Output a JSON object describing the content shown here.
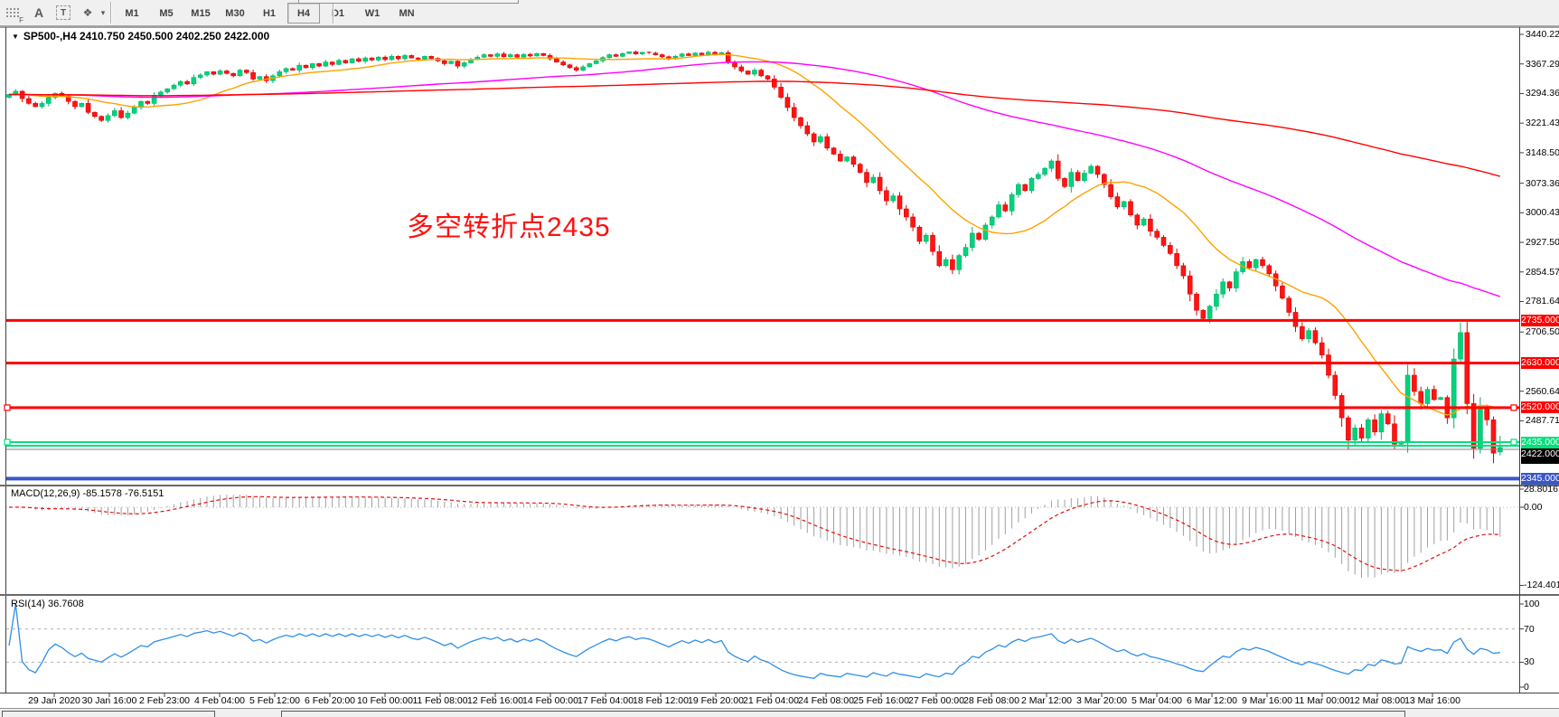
{
  "window": {
    "toolbar": {
      "icons": [
        {
          "name": "template-grid-icon",
          "glyph": "F"
        },
        {
          "name": "text-a-icon",
          "glyph": "A"
        },
        {
          "name": "text-box-icon",
          "glyph": "T"
        },
        {
          "name": "objects-icon",
          "glyph": "❖"
        },
        {
          "name": "dropdown-caret-icon",
          "glyph": "▾"
        }
      ],
      "timeframes": [
        {
          "label": "M1",
          "active": false
        },
        {
          "label": "M5",
          "active": false
        },
        {
          "label": "M15",
          "active": false
        },
        {
          "label": "M30",
          "active": false
        },
        {
          "label": "H1",
          "active": false
        },
        {
          "label": "H4",
          "active": true
        },
        {
          "label": "D1",
          "active": false
        },
        {
          "label": "W1",
          "active": false
        },
        {
          "label": "MN",
          "active": false
        }
      ]
    },
    "chart_title": {
      "triangle": "▼",
      "text": "SP500-,H4  2410.750 2450.500 2402.250 2422.000"
    }
  },
  "chart_data": {
    "type": "candlestick",
    "symbol": "SP500-",
    "timeframe": "H4",
    "current_ohlc": {
      "open": 2410.75,
      "high": 2450.5,
      "low": 2402.25,
      "close": 2422.0
    },
    "first_open": 3285,
    "closes": [
      3292,
      3300,
      3282,
      3270,
      3262,
      3270,
      3285,
      3295,
      3288,
      3275,
      3262,
      3270,
      3248,
      3238,
      3228,
      3240,
      3252,
      3235,
      3246,
      3260,
      3275,
      3270,
      3290,
      3298,
      3306,
      3315,
      3324,
      3318,
      3334,
      3340,
      3348,
      3342,
      3350,
      3344,
      3338,
      3352,
      3346,
      3330,
      3336,
      3326,
      3338,
      3348,
      3356,
      3352,
      3364,
      3358,
      3368,
      3362,
      3372,
      3366,
      3376,
      3370,
      3380,
      3374,
      3382,
      3377,
      3384,
      3378,
      3386,
      3380,
      3388,
      3382,
      3379,
      3386,
      3381,
      3375,
      3368,
      3374,
      3362,
      3370,
      3378,
      3384,
      3390,
      3386,
      3392,
      3385,
      3390,
      3384,
      3391,
      3387,
      3393,
      3388,
      3380,
      3372,
      3365,
      3358,
      3352,
      3360,
      3368,
      3375,
      3383,
      3390,
      3386,
      3393,
      3397,
      3392,
      3396,
      3394,
      3390,
      3385,
      3380,
      3386,
      3392,
      3388,
      3394,
      3390,
      3396,
      3391,
      3395,
      3372,
      3360,
      3350,
      3342,
      3352,
      3338,
      3330,
      3310,
      3285,
      3260,
      3235,
      3215,
      3195,
      3175,
      3188,
      3160,
      3145,
      3128,
      3138,
      3120,
      3100,
      3075,
      3088,
      3055,
      3030,
      3042,
      3010,
      2990,
      2965,
      2930,
      2945,
      2905,
      2870,
      2885,
      2860,
      2895,
      2915,
      2950,
      2935,
      2970,
      2990,
      3020,
      3005,
      3045,
      3070,
      3055,
      3085,
      3095,
      3110,
      3128,
      3085,
      3065,
      3100,
      3080,
      3098,
      3115,
      3095,
      3070,
      3040,
      3015,
      3028,
      2995,
      2970,
      2985,
      2955,
      2940,
      2920,
      2900,
      2870,
      2845,
      2800,
      2760,
      2740,
      2770,
      2800,
      2830,
      2815,
      2855,
      2880,
      2865,
      2885,
      2870,
      2850,
      2820,
      2790,
      2755,
      2720,
      2690,
      2710,
      2680,
      2650,
      2600,
      2550,
      2495,
      2440,
      2470,
      2445,
      2490,
      2460,
      2505,
      2480,
      2430,
      2435,
      2600,
      2560,
      2530,
      2565,
      2540,
      2545,
      2495,
      2640,
      2705,
      2530,
      2420,
      2520,
      2490,
      2408,
      2422
    ],
    "colors": {
      "up_candle": "#00d37e",
      "up_stroke": "#00b468",
      "down_candle": "#ff1414",
      "down_stroke": "#dc0000",
      "ma_fast": "#ffa200",
      "ma_mid": "#ff00ff",
      "ma_slow": "#ff0000",
      "macd_bar": "#a0a0a0",
      "macd_signal": "#e01010",
      "rsi_line": "#2f8fe8",
      "level_line": "#ff0000",
      "pivot_line": "#00e07c",
      "stop_line": "#3a57c8",
      "price_line": "#808080"
    },
    "moving_averages": [
      {
        "name": "fast",
        "period": 18,
        "color": "#ffa200"
      },
      {
        "name": "medium",
        "period": 85,
        "color": "#ff00ff"
      },
      {
        "name": "slow",
        "period": 200,
        "color": "#ff0000"
      }
    ],
    "y_axis_ticks": [
      3440.22,
      3367.29,
      3294.36,
      3221.43,
      3148.5,
      3073.36,
      3000.43,
      2927.5,
      2854.57,
      2781.64,
      2706.5,
      2560.64,
      2487.71
    ],
    "y_axis_format": [
      "3440.220",
      "3367.290",
      "3294.360",
      "3221.430",
      "3148.500",
      "3073.360",
      "3000.430",
      "2927.500",
      "2854.570",
      "2781.640",
      "2706.500",
      "2560.640",
      "2487.710"
    ],
    "time_axis_labels": [
      "29 Jan 2020",
      "30 Jan 16:00",
      "2 Feb 23:00",
      "4 Feb 04:00",
      "5 Feb 12:00",
      "6 Feb 20:00",
      "10 Feb 00:00",
      "11 Feb 08:00",
      "12 Feb 16:00",
      "14 Feb 00:00",
      "17 Feb 04:00",
      "18 Feb 12:00",
      "19 Feb 20:00",
      "21 Feb 04:00",
      "24 Feb 08:00",
      "25 Feb 16:00",
      "27 Feb 00:00",
      "28 Feb 08:00",
      "2 Mar 12:00",
      "3 Mar 20:00",
      "5 Mar 04:00",
      "6 Mar 12:00",
      "9 Mar 16:00",
      "11 Mar 00:00",
      "12 Mar 08:00",
      "13 Mar 16:00"
    ],
    "horizontal_lines": [
      {
        "price": 2735.0,
        "label": "2735.000",
        "color": "#ff0000",
        "width": 3,
        "handles": false
      },
      {
        "price": 2630.0,
        "label": "2630.000",
        "color": "#ff0000",
        "width": 3,
        "handles": false
      },
      {
        "price": 2520.0,
        "label": "2520.000",
        "color": "#ff0000",
        "width": 3,
        "handles": true
      },
      {
        "price": 2435.0,
        "label": "2435.000",
        "color": "#00e07c",
        "width": 2,
        "handles": true,
        "double_line_price": 2426.0
      },
      {
        "price": 2345.0,
        "label": "2345.000",
        "color": "#3a57c8",
        "width": 4,
        "handles": false
      }
    ],
    "current_price_label": {
      "text": "2422.000",
      "bg": "#000000"
    },
    "annotation": {
      "text": "多空转折点2435",
      "color": "#ff1010"
    },
    "macd": {
      "label": "MACD(12,26,9)",
      "values_label": "-85.1578 -76.5151",
      "fast": 12,
      "slow": 26,
      "signal": 9,
      "axis_ticks": [
        {
          "text": "28.8016",
          "value": 28.8016
        },
        {
          "text": "0.00",
          "value": 0
        },
        {
          "text": "-124.4011",
          "value": -124.4011
        }
      ]
    },
    "rsi": {
      "label": "RSI(14)",
      "value_label": "36.7608",
      "period": 14,
      "levels": [
        70,
        30
      ],
      "axis_ticks": [
        {
          "text": "100",
          "value": 100
        },
        {
          "text": "70",
          "value": 70
        },
        {
          "text": "30",
          "value": 30
        },
        {
          "text": "0",
          "value": 0
        }
      ]
    }
  }
}
